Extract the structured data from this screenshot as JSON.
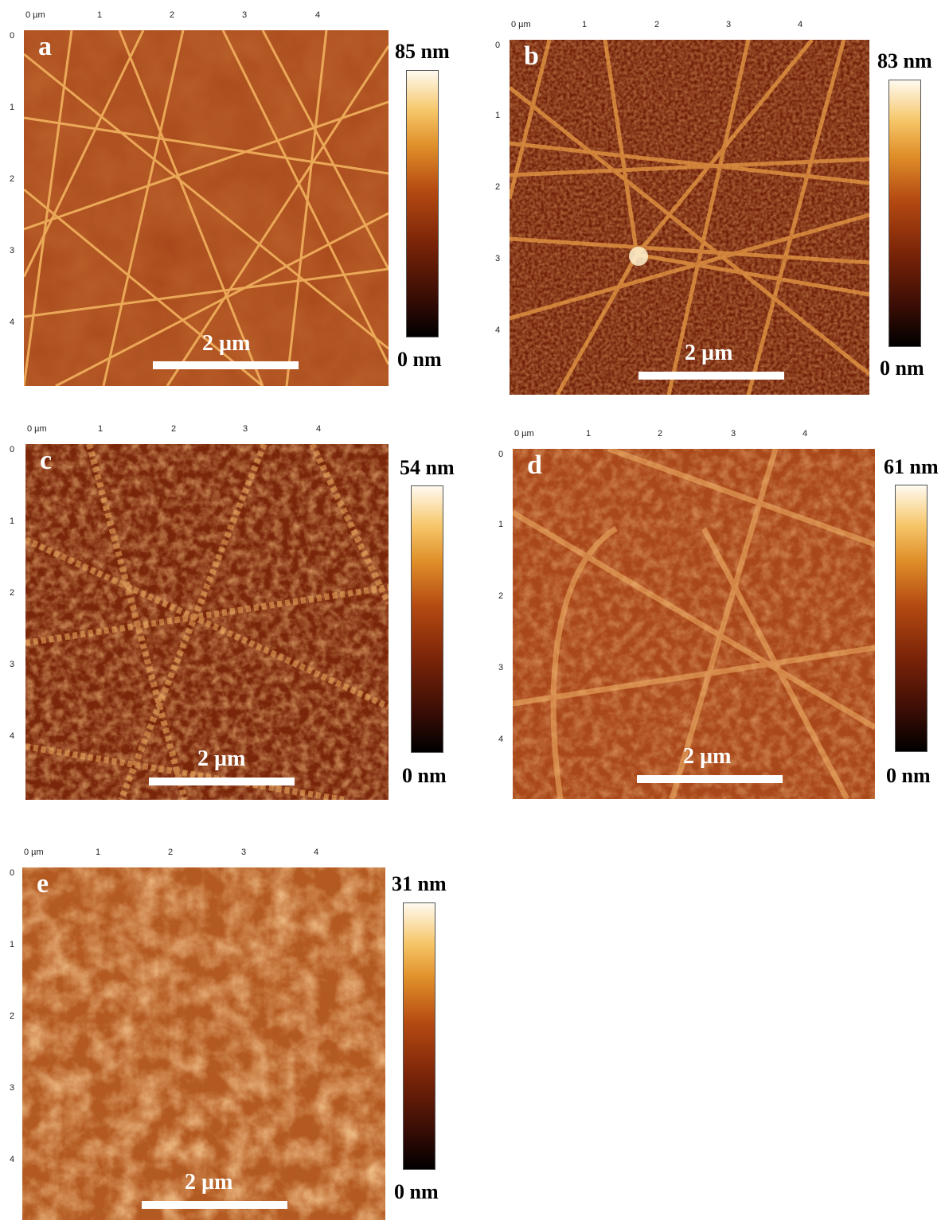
{
  "panels": [
    {
      "letter": "a",
      "scale_bar": "2 µm",
      "cb_max": "85 nm",
      "cb_min": "0 nm",
      "x_ticks": [
        "0 µm",
        "1",
        "2",
        "3",
        "4"
      ],
      "y_ticks": [
        "0",
        "1",
        "2",
        "3",
        "4"
      ]
    },
    {
      "letter": "b",
      "scale_bar": "2 µm",
      "cb_max": "83 nm",
      "cb_min": "0 nm",
      "x_ticks": [
        "0 µm",
        "1",
        "2",
        "3",
        "4"
      ],
      "y_ticks": [
        "0",
        "1",
        "2",
        "3",
        "4"
      ]
    },
    {
      "letter": "c",
      "scale_bar": "2 µm",
      "cb_max": "54 nm",
      "cb_min": "0 nm",
      "x_ticks": [
        "0 µm",
        "1",
        "2",
        "3",
        "4"
      ],
      "y_ticks": [
        "0",
        "1",
        "2",
        "3",
        "4"
      ]
    },
    {
      "letter": "d",
      "scale_bar": "2 µm",
      "cb_max": "61 nm",
      "cb_min": "0 nm",
      "x_ticks": [
        "0 µm",
        "1",
        "2",
        "3",
        "4"
      ],
      "y_ticks": [
        "0",
        "1",
        "2",
        "3",
        "4"
      ]
    },
    {
      "letter": "e",
      "scale_bar": "2 µm",
      "cb_max": "31 nm",
      "cb_min": "0 nm",
      "x_ticks": [
        "0 µm",
        "1",
        "2",
        "3",
        "4"
      ],
      "y_ticks": [
        "0",
        "1",
        "2",
        "3",
        "4"
      ]
    }
  ]
}
